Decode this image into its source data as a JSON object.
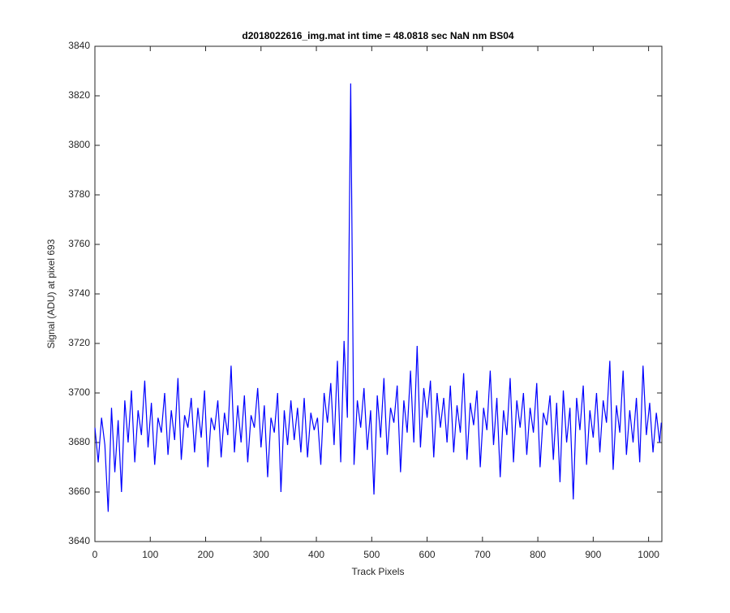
{
  "chart_data": {
    "type": "line",
    "title": "d2018022616_img.mat int time = 48.0818 sec  NaN nm BS04",
    "x_label": "Track Pixels",
    "y_label": "Signal (ADU) at pixel 693",
    "xlim": [
      0,
      1024
    ],
    "ylim": [
      3640,
      3840
    ],
    "xticks": [
      0,
      100,
      200,
      300,
      400,
      500,
      600,
      700,
      800,
      900,
      1000
    ],
    "yticks": [
      3640,
      3660,
      3680,
      3700,
      3720,
      3740,
      3760,
      3780,
      3800,
      3820,
      3840
    ],
    "grid": false,
    "series": [
      {
        "color": "#0000ff",
        "x": [
          0,
          6,
          12,
          18,
          24,
          30,
          36,
          42,
          48,
          54,
          60,
          66,
          72,
          78,
          84,
          90,
          96,
          102,
          108,
          114,
          120,
          126,
          132,
          138,
          144,
          150,
          156,
          162,
          168,
          174,
          180,
          186,
          192,
          198,
          204,
          210,
          216,
          222,
          228,
          234,
          240,
          246,
          252,
          258,
          264,
          270,
          276,
          282,
          288,
          294,
          300,
          306,
          312,
          318,
          324,
          330,
          336,
          342,
          348,
          354,
          360,
          366,
          372,
          378,
          384,
          390,
          396,
          402,
          408,
          414,
          420,
          426,
          432,
          438,
          444,
          450,
          456,
          462,
          468,
          474,
          480,
          486,
          492,
          498,
          504,
          510,
          516,
          522,
          528,
          534,
          540,
          546,
          552,
          558,
          564,
          570,
          576,
          582,
          588,
          594,
          600,
          606,
          612,
          618,
          624,
          630,
          636,
          642,
          648,
          654,
          660,
          666,
          672,
          678,
          684,
          690,
          696,
          702,
          708,
          714,
          720,
          726,
          732,
          738,
          744,
          750,
          756,
          762,
          768,
          774,
          780,
          786,
          792,
          798,
          804,
          810,
          816,
          822,
          828,
          834,
          840,
          846,
          852,
          858,
          864,
          870,
          876,
          882,
          888,
          894,
          900,
          906,
          912,
          918,
          924,
          930,
          936,
          942,
          948,
          954,
          960,
          966,
          972,
          978,
          984,
          990,
          996,
          1002,
          1008,
          1014,
          1020,
          1023
        ],
        "values": [
          3686,
          3672,
          3690,
          3679,
          3652,
          3694,
          3668,
          3689,
          3660,
          3697,
          3680,
          3701,
          3672,
          3693,
          3683,
          3705,
          3678,
          3696,
          3671,
          3690,
          3684,
          3700,
          3675,
          3693,
          3681,
          3706,
          3673,
          3691,
          3686,
          3698,
          3676,
          3694,
          3682,
          3701,
          3670,
          3690,
          3685,
          3697,
          3674,
          3692,
          3683,
          3711,
          3676,
          3695,
          3680,
          3699,
          3672,
          3691,
          3686,
          3702,
          3678,
          3695,
          3666,
          3690,
          3684,
          3700,
          3660,
          3693,
          3679,
          3697,
          3681,
          3694,
          3676,
          3698,
          3674,
          3692,
          3685,
          3690,
          3671,
          3700,
          3688,
          3704,
          3679,
          3713,
          3672,
          3721,
          3690,
          3825,
          3671,
          3697,
          3686,
          3702,
          3677,
          3693,
          3659,
          3699,
          3682,
          3706,
          3675,
          3694,
          3688,
          3703,
          3668,
          3697,
          3684,
          3709,
          3680,
          3719,
          3678,
          3702,
          3690,
          3705,
          3674,
          3700,
          3686,
          3698,
          3680,
          3703,
          3676,
          3695,
          3684,
          3708,
          3673,
          3696,
          3687,
          3701,
          3670,
          3694,
          3685,
          3709,
          3679,
          3698,
          3666,
          3693,
          3683,
          3706,
          3672,
          3697,
          3686,
          3700,
          3675,
          3694,
          3684,
          3704,
          3670,
          3692,
          3687,
          3699,
          3673,
          3696,
          3664,
          3701,
          3680,
          3694,
          3657,
          3698,
          3685,
          3703,
          3671,
          3693,
          3682,
          3700,
          3676,
          3697,
          3688,
          3713,
          3669,
          3695,
          3684,
          3709,
          3675,
          3693,
          3680,
          3698,
          3672,
          3711,
          3683,
          3696,
          3676,
          3692,
          3680,
          3688
        ]
      }
    ]
  }
}
